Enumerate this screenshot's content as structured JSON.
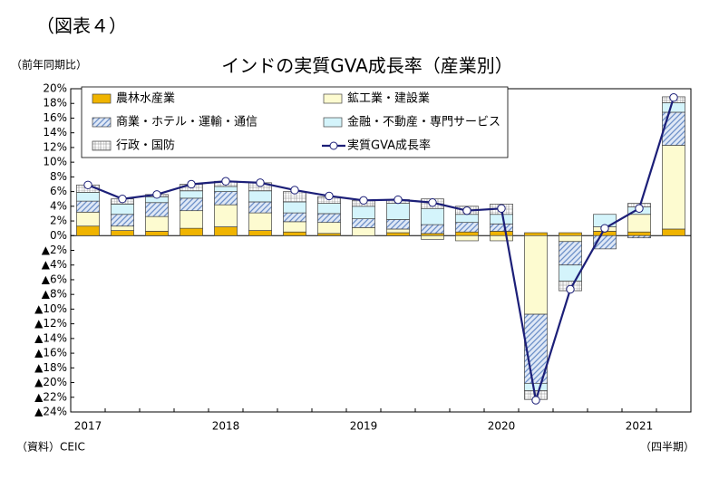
{
  "figure_label": "（図表４）",
  "unit_label": "（前年同期比）",
  "source": "（資料）CEIC",
  "period_label": "（四半期）",
  "chart_data": {
    "type": "bar",
    "stacked": true,
    "title": "インドの実質GVA成長率（産業別）",
    "categories": [
      "2017",
      null,
      null,
      null,
      "2018",
      null,
      null,
      null,
      "2019",
      null,
      null,
      null,
      "2020",
      null,
      null,
      null,
      "2021",
      null
    ],
    "series": [
      {
        "name": "農林水産業",
        "color": "#f0b400",
        "pattern": "solid",
        "values": [
          1.3,
          0.7,
          0.6,
          1.0,
          1.2,
          0.7,
          0.5,
          0.3,
          0.0,
          0.4,
          0.3,
          0.5,
          0.6,
          0.4,
          0.4,
          0.6,
          0.5,
          0.9
        ]
      },
      {
        "name": "鉱工業・建設業",
        "color": "#fdfbd0",
        "pattern": "solid",
        "values": [
          1.9,
          0.6,
          2.0,
          2.4,
          3.0,
          2.4,
          1.4,
          1.5,
          1.1,
          0.5,
          -0.5,
          -0.7,
          -0.7,
          -10.7,
          -0.8,
          0.6,
          2.4,
          11.4
        ]
      },
      {
        "name": "商業・ホテル・運輸・通信",
        "color": "#6c8fc8",
        "pattern": "diagonal",
        "values": [
          1.5,
          1.6,
          1.9,
          1.7,
          1.8,
          1.5,
          1.2,
          1.2,
          1.2,
          1.3,
          1.2,
          1.3,
          1.0,
          -9.4,
          -3.2,
          -1.8,
          -0.3,
          4.5
        ]
      },
      {
        "name": "金融・不動産・専門サービス",
        "color": "#d4f4fb",
        "pattern": "solid",
        "values": [
          1.2,
          1.4,
          0.8,
          1.0,
          0.7,
          1.5,
          1.5,
          1.4,
          1.7,
          2.2,
          2.2,
          1.1,
          1.3,
          -1.0,
          -2.2,
          1.7,
          1.0,
          1.3
        ]
      },
      {
        "name": "行政・国防",
        "color": "#8c8c8c",
        "pattern": "grid",
        "values": [
          1.0,
          0.7,
          0.3,
          0.9,
          0.7,
          1.1,
          1.4,
          0.9,
          0.8,
          0.5,
          1.3,
          1.1,
          1.4,
          -1.2,
          -1.3,
          0.0,
          0.5,
          0.8
        ]
      },
      {
        "name": "実質GVA成長率",
        "color": "#1c1f78",
        "type": "line",
        "values": [
          6.9,
          5.0,
          5.6,
          7.0,
          7.4,
          7.2,
          6.2,
          5.4,
          4.8,
          4.9,
          4.5,
          3.4,
          3.7,
          -22.4,
          -7.3,
          1.0,
          3.7,
          18.8
        ]
      }
    ],
    "ylim": [
      -24,
      20
    ],
    "yticks": [
      {
        "value": 20,
        "label": "20%"
      },
      {
        "value": 18,
        "label": "18%"
      },
      {
        "value": 16,
        "label": "16%"
      },
      {
        "value": 14,
        "label": "14%"
      },
      {
        "value": 12,
        "label": "12%"
      },
      {
        "value": 10,
        "label": "10%"
      },
      {
        "value": 8,
        "label": "8%"
      },
      {
        "value": 6,
        "label": "6%"
      },
      {
        "value": 4,
        "label": "4%"
      },
      {
        "value": 2,
        "label": "2%"
      },
      {
        "value": 0,
        "label": "0%"
      },
      {
        "value": -2,
        "label": "▲2%"
      },
      {
        "value": -4,
        "label": "▲4%"
      },
      {
        "value": -6,
        "label": "▲6%"
      },
      {
        "value": -8,
        "label": "▲8%"
      },
      {
        "value": -10,
        "label": "▲10%"
      },
      {
        "value": -12,
        "label": "▲12%"
      },
      {
        "value": -14,
        "label": "▲14%"
      },
      {
        "value": -16,
        "label": "▲16%"
      },
      {
        "value": -18,
        "label": "▲18%"
      },
      {
        "value": -20,
        "label": "▲20%"
      },
      {
        "value": -22,
        "label": "▲22%"
      },
      {
        "value": -24,
        "label": "▲24%"
      }
    ],
    "grid": false,
    "legend": "top-left"
  }
}
